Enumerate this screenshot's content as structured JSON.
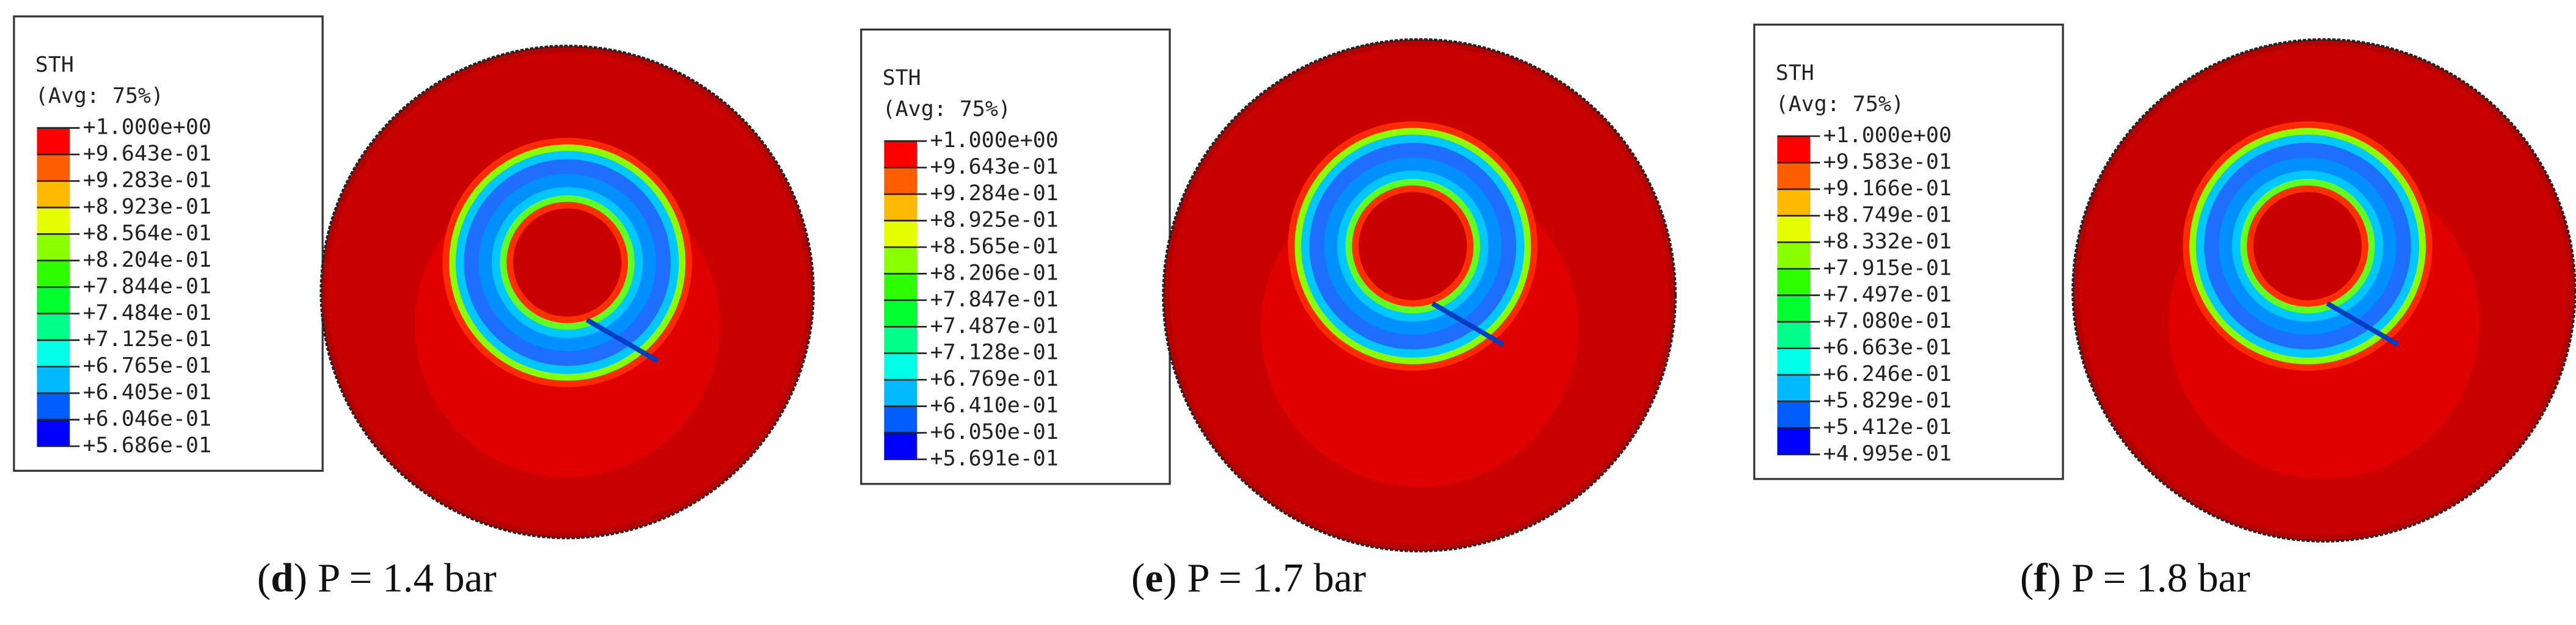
{
  "panels": [
    {
      "legend": {
        "title": "STH",
        "subtitle": "(Avg: 75%)",
        "labels": [
          "+1.000e+00",
          "+9.643e-01",
          "+9.283e-01",
          "+8.923e-01",
          "+8.564e-01",
          "+8.204e-01",
          "+7.844e-01",
          "+7.484e-01",
          "+7.125e-01",
          "+6.765e-01",
          "+6.405e-01",
          "+6.046e-01",
          "+5.686e-01"
        ]
      },
      "caption": [
        "(",
        "d",
        ") P = 1.4 bar"
      ]
    },
    {
      "legend": {
        "title": "STH",
        "subtitle": "(Avg: 75%)",
        "labels": [
          "+1.000e+00",
          "+9.643e-01",
          "+9.284e-01",
          "+8.925e-01",
          "+8.565e-01",
          "+8.206e-01",
          "+7.847e-01",
          "+7.487e-01",
          "+7.128e-01",
          "+6.769e-01",
          "+6.410e-01",
          "+6.050e-01",
          "+5.691e-01"
        ]
      },
      "caption": [
        "(",
        "e",
        ") P = 1.7 bar"
      ]
    },
    {
      "legend": {
        "title": "STH",
        "subtitle": "(Avg: 75%)",
        "labels": [
          "+1.000e+00",
          "+9.583e-01",
          "+9.166e-01",
          "+8.749e-01",
          "+8.332e-01",
          "+7.915e-01",
          "+7.497e-01",
          "+7.080e-01",
          "+6.663e-01",
          "+6.246e-01",
          "+5.829e-01",
          "+5.412e-01",
          "+4.995e-01"
        ]
      },
      "caption": [
        "(",
        "f",
        ") P = 1.8 bar"
      ]
    }
  ]
}
